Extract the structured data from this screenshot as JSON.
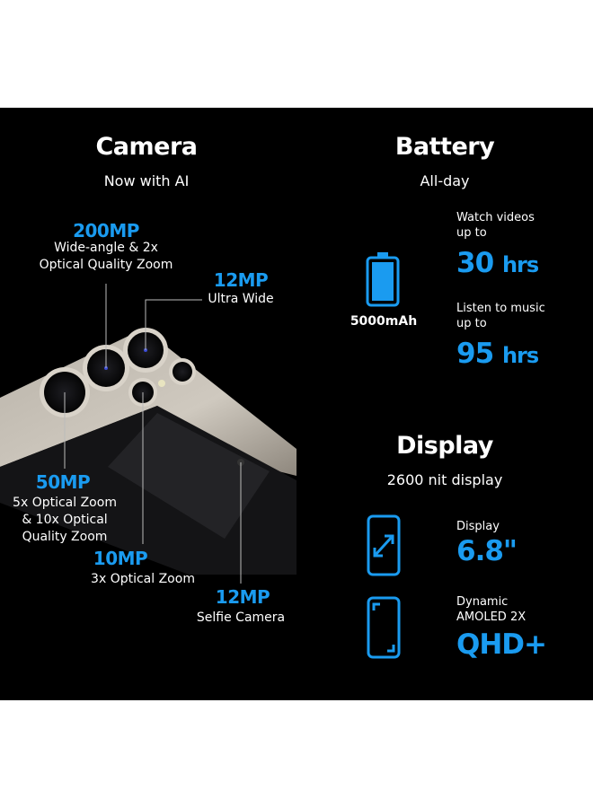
{
  "camera": {
    "title": "Camera",
    "subtitle": "Now with AI",
    "specs": [
      {
        "mp": "200MP",
        "desc": [
          "Wide-angle & 2x",
          "Optical Quality Zoom"
        ]
      },
      {
        "mp": "12MP",
        "desc": [
          "Ultra Wide"
        ]
      },
      {
        "mp": "50MP",
        "desc": [
          "5x Optical Zoom",
          "& 10x Optical",
          "Quality Zoom"
        ]
      },
      {
        "mp": "10MP",
        "desc": [
          "3x Optical Zoom"
        ]
      },
      {
        "mp": "12MP",
        "desc": [
          "Selfie Camera"
        ]
      }
    ]
  },
  "battery": {
    "title": "Battery",
    "subtitle": "All-day",
    "capacity": "5000mAh",
    "icon": "battery-full-icon",
    "video": {
      "label": [
        "Watch videos",
        "up to"
      ],
      "value": "30",
      "unit": "hrs"
    },
    "music": {
      "label": [
        "Listen to music",
        "up to"
      ],
      "value": "95",
      "unit": "hrs"
    }
  },
  "display": {
    "title": "Display",
    "subtitle": "2600 nit display",
    "size": {
      "label": "Display",
      "value": "6.8\"",
      "icon": "phone-diagonal-arrow-icon"
    },
    "panel": {
      "label": [
        "Dynamic",
        "AMOLED 2X"
      ],
      "value": "QHD+",
      "icon": "phone-corners-icon"
    }
  },
  "colors": {
    "accent": "#1a9bf0",
    "background": "#000000",
    "text": "#ffffff"
  }
}
